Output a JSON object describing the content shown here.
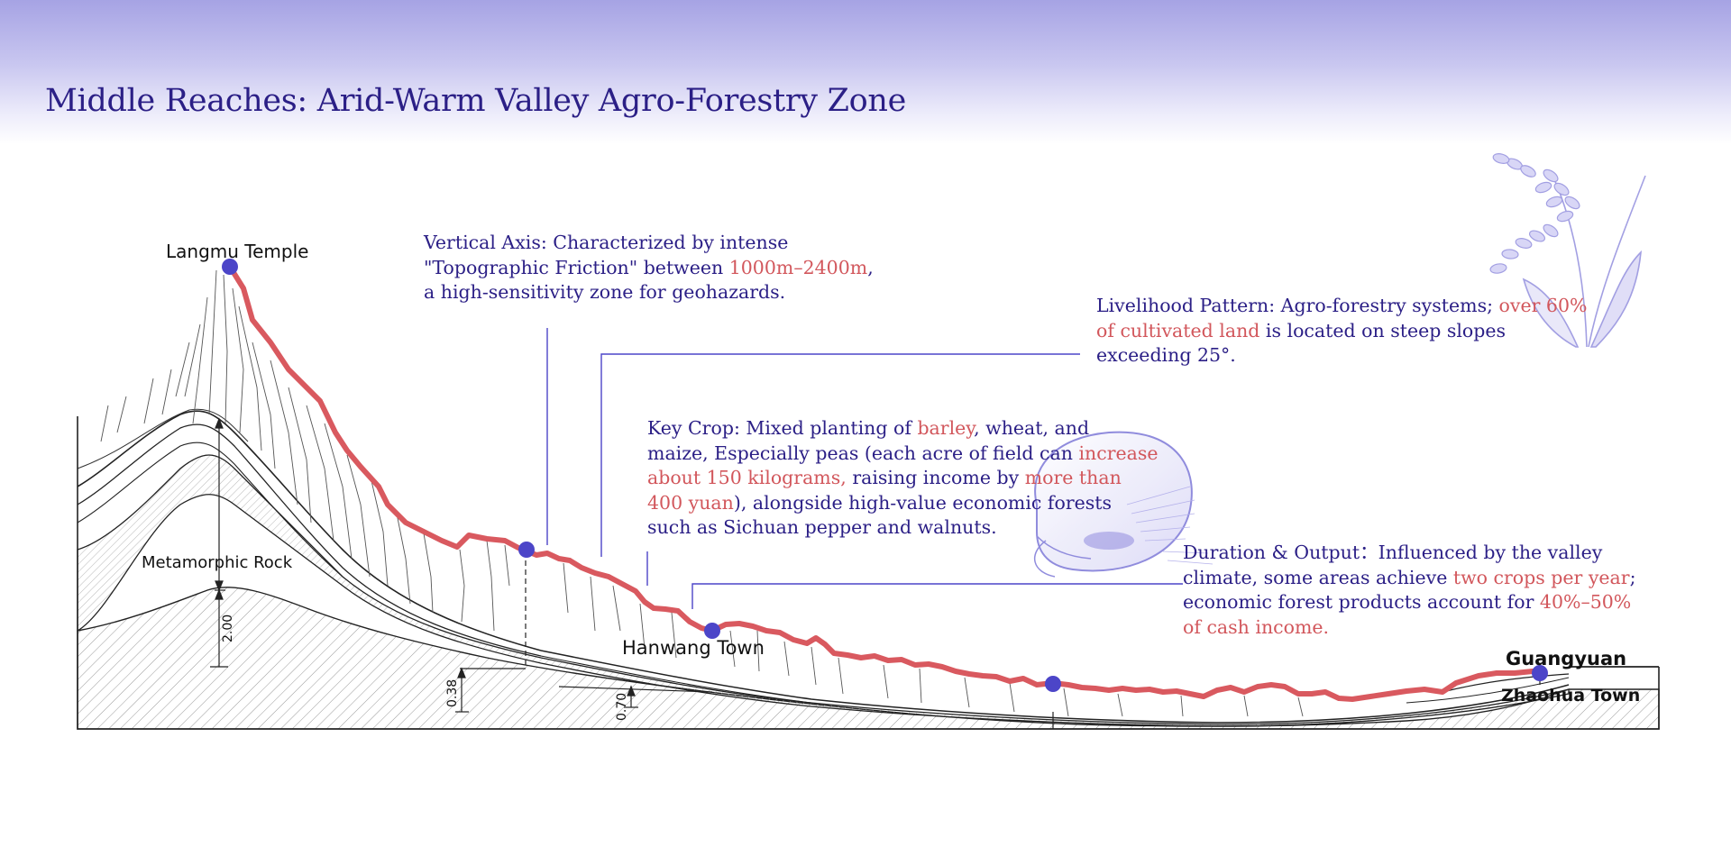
{
  "title": "Middle Reaches: Arid-Warm Valley Agro-Forestry Zone",
  "places": {
    "langmu": "Langmu Temple",
    "hanwang": "Hanwang Town",
    "guangyuan": "Guangyuan",
    "zhaohua": "Zhaohua Town",
    "rock": "Metamorphic Rock"
  },
  "dimensions": {
    "d1": "2.00",
    "d2": "0.38",
    "d3": "0.70"
  },
  "notes": {
    "vertical": {
      "l1a": "Vertical Axis:  Characterized by intense",
      "l2a": "\"Topographic Friction\" between ",
      "l2b": "1000m–2400m",
      "l2c": ",",
      "l3a": "a high-sensitivity zone for geohazards."
    },
    "livelihood": {
      "l1a": "Livelihood Pattern: Agro-forestry systems; ",
      "l1b": "over 60%",
      "l2b": "of cultivated land",
      "l2c": " is located on steep slopes",
      "l3a": "exceeding 25°."
    },
    "crop": {
      "l1a": "Key Crop: Mixed planting of ",
      "l1b": "barley",
      "l1c": ", wheat, and",
      "l2a": "maize, Especially peas (each acre of field can ",
      "l2b": "increase",
      "l3b": "about 150 kilograms,",
      "l3c": " raising income by ",
      "l3d": "more than",
      "l4b": "400 yuan",
      "l4c": "), alongside high-value economic forests",
      "l5a": "such as Sichuan pepper and walnuts."
    },
    "duration": {
      "l1a": "Duration & Output：Influenced by the valley",
      "l2a": "climate, some areas achieve ",
      "l2b": "two crops per year",
      "l2c": ";",
      "l3a": "economic forest products account for ",
      "l3b": "40%–50%",
      "l4b": "of cash income."
    }
  },
  "colors": {
    "title": "#2b1f86",
    "highlight": "#d2575c",
    "ridge": "#d9595f",
    "marker": "#4c45c8",
    "zone": "#d6d4f2"
  },
  "decorations": [
    "wheat-illustration",
    "pea-illustration"
  ]
}
